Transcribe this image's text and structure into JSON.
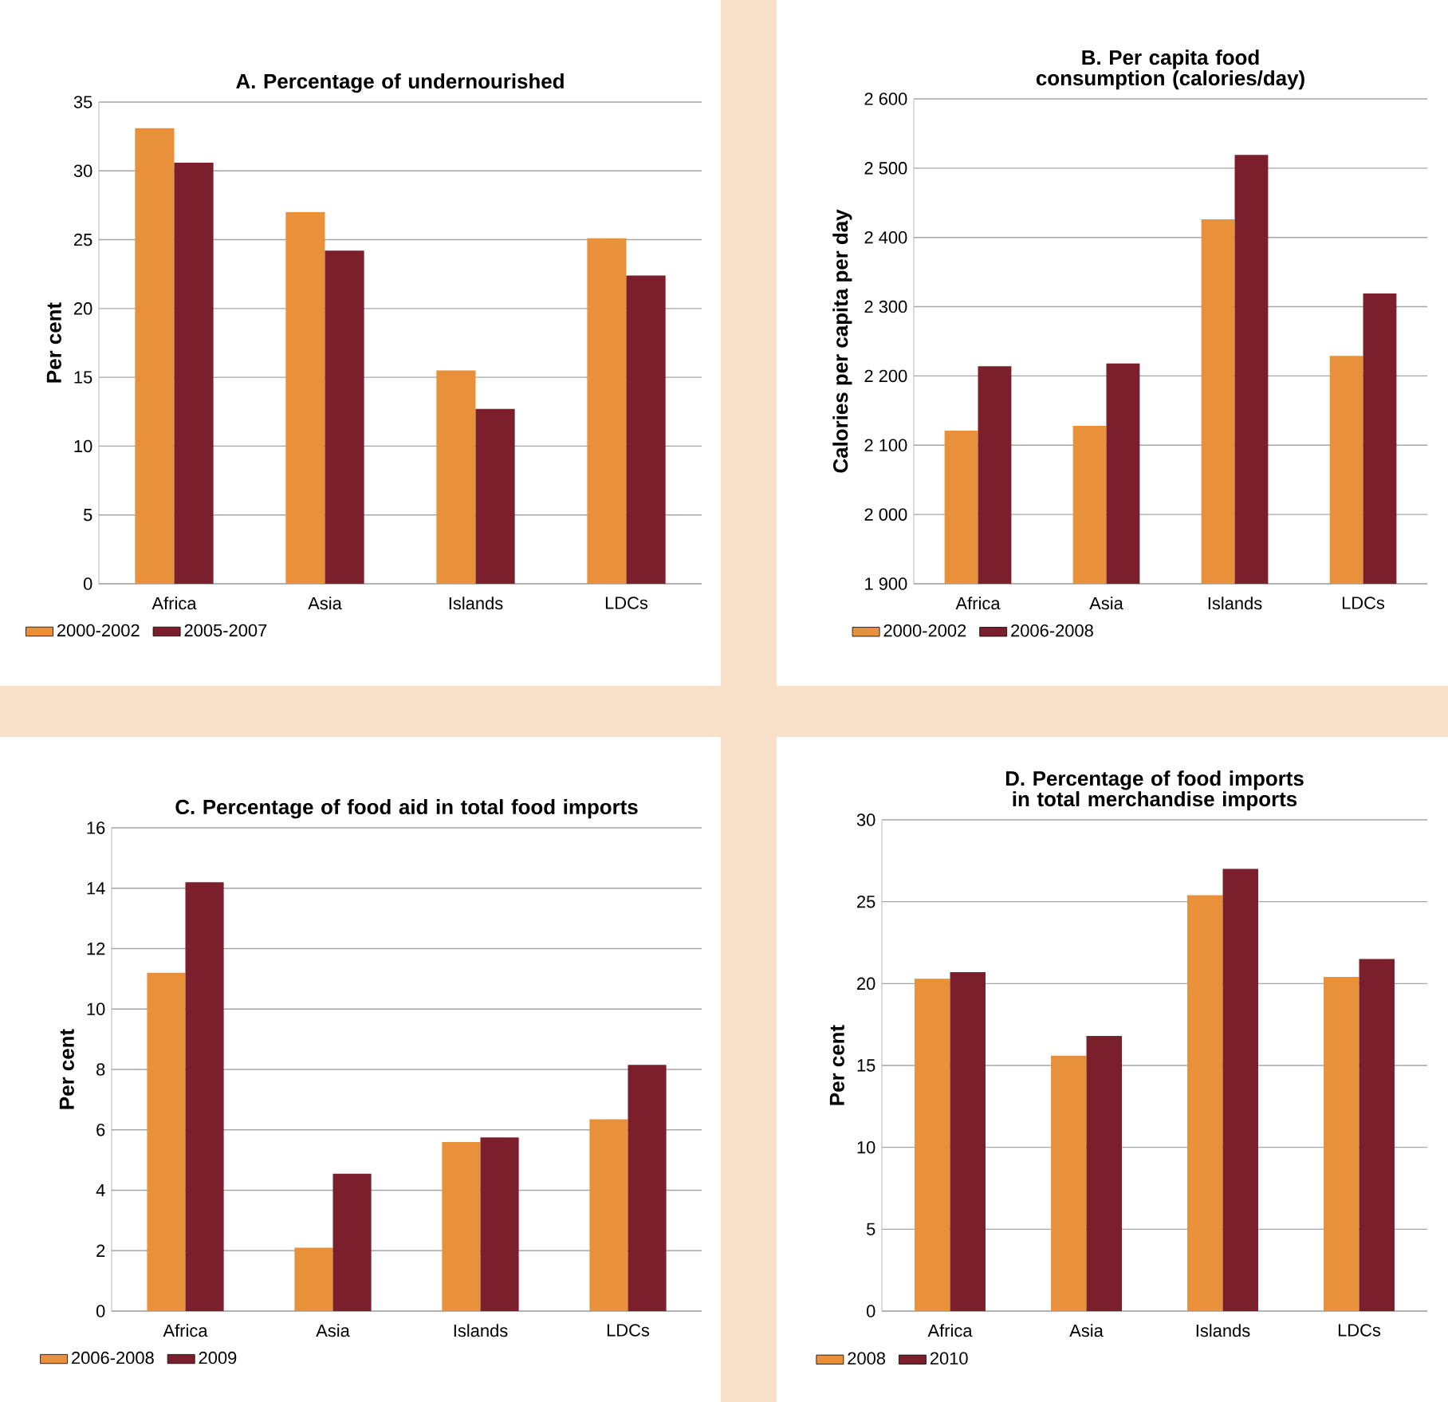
{
  "chart_data": [
    {
      "type": "bar",
      "title": "A. Percentage of undernourished",
      "ylabel": "Per cent",
      "categories": [
        "Africa",
        "Asia",
        "Islands",
        "LDCs"
      ],
      "series": [
        {
          "name": "2000-2002",
          "color": "#e8903a",
          "values": [
            33.1,
            27.0,
            15.5,
            25.1
          ]
        },
        {
          "name": "2005-2007",
          "color": "#7a1f2b",
          "values": [
            30.6,
            24.2,
            12.7,
            22.4
          ]
        }
      ],
      "ylim": [
        0,
        35
      ],
      "yticks": [
        0,
        5,
        10,
        15,
        20,
        25,
        30,
        35
      ],
      "grid": "y",
      "legend": "bottom"
    },
    {
      "type": "bar",
      "title": "B. Per capita food consumption (calories/day)",
      "ylabel": "Calories per capita per day",
      "categories": [
        "Africa",
        "Asia",
        "Islands",
        "LDCs"
      ],
      "series": [
        {
          "name": "2000-2002",
          "color": "#e8903a",
          "values": [
            2121,
            2128,
            2426,
            2229
          ]
        },
        {
          "name": "2006-2008",
          "color": "#7a1f2b",
          "values": [
            2214,
            2218,
            2519,
            2319
          ]
        }
      ],
      "ylim": [
        1900,
        2600
      ],
      "yticks": [
        {
          "value": 1900,
          "label": "1 900"
        },
        {
          "value": 2000,
          "label": "2 000"
        },
        {
          "value": 2100,
          "label": "2 100"
        },
        {
          "value": 2200,
          "label": "2 200"
        },
        {
          "value": 2300,
          "label": "2 300"
        },
        {
          "value": 2400,
          "label": "2 400"
        },
        {
          "value": 2500,
          "label": "2 500"
        },
        {
          "value": 2600,
          "label": "2 600"
        }
      ],
      "grid": "y",
      "legend": "bottom"
    },
    {
      "type": "bar",
      "title": "C.  Percentage of food aid in total food imports",
      "ylabel": "Per cent",
      "categories": [
        "Africa",
        "Asia",
        "Islands",
        "LDCs"
      ],
      "series": [
        {
          "name": "2006-2008",
          "color": "#e8903a",
          "values": [
            11.2,
            2.1,
            5.6,
            6.35
          ]
        },
        {
          "name": "2009",
          "color": "#7a1f2b",
          "values": [
            14.2,
            4.55,
            5.75,
            8.15
          ]
        }
      ],
      "ylim": [
        0,
        16
      ],
      "yticks": [
        0,
        2,
        4,
        6,
        8,
        10,
        12,
        14,
        16
      ],
      "grid": "y",
      "legend": "bottom"
    },
    {
      "type": "bar",
      "title": "D.  Percentage of food imports in total merchandise imports",
      "ylabel": "Per cent",
      "categories": [
        "Africa",
        "Asia",
        "Islands",
        "LDCs"
      ],
      "series": [
        {
          "name": "2008",
          "color": "#e8903a",
          "values": [
            20.3,
            15.6,
            25.4,
            20.4
          ]
        },
        {
          "name": "2010",
          "color": "#7a1f2b",
          "values": [
            20.7,
            16.8,
            27.0,
            21.5
          ]
        }
      ],
      "ylim": [
        0,
        30
      ],
      "yticks": [
        0,
        5,
        10,
        15,
        20,
        25,
        30
      ],
      "grid": "y",
      "legend": "bottom"
    }
  ]
}
